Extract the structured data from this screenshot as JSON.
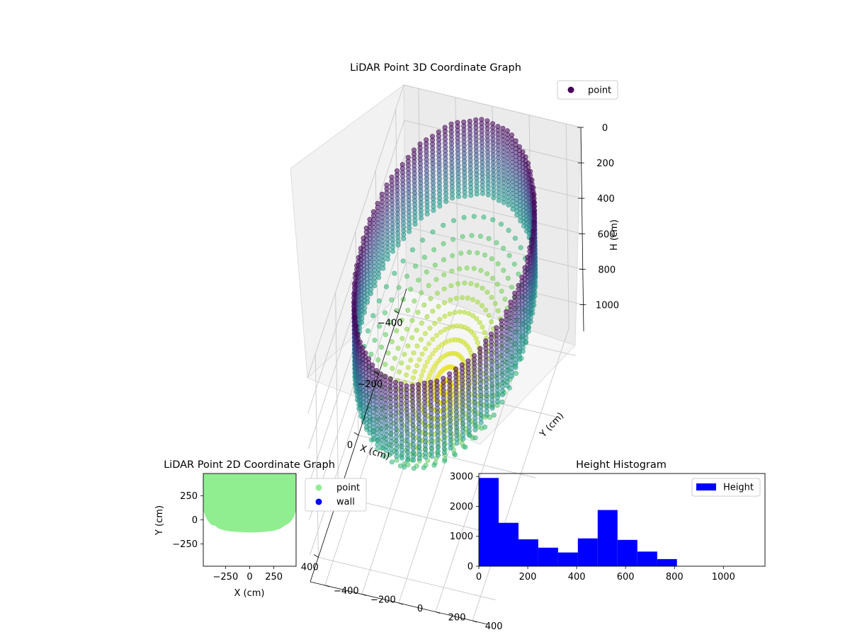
{
  "chart_data": [
    {
      "type": "scatter3d",
      "title": "LiDAR Point 3D Coordinate Graph",
      "xlabel": "X (cm)",
      "ylabel": "Y (cm)",
      "zlabel": "H (cm)",
      "xlim": [
        -480,
        480
      ],
      "ylim": [
        -480,
        480
      ],
      "zlim": [
        0,
        1150
      ],
      "z_inverted": true,
      "x_ticks": [
        -400,
        -200,
        0,
        200,
        400
      ],
      "y_ticks": [
        -400,
        -200,
        0,
        200,
        400
      ],
      "z_ticks": [
        0,
        200,
        400,
        600,
        800,
        1000
      ],
      "legend": {
        "position": "top-right",
        "entries": [
          {
            "label": "point",
            "color": "#440154"
          }
        ]
      },
      "colormap": "viridis",
      "color_by": "height",
      "shape": {
        "ring_radius_cm": 430,
        "wall_top_cm": 0,
        "wall_bottom_cm": 430,
        "floor_depth_cm": 770
      }
    },
    {
      "type": "scatter",
      "title": "LiDAR Point 2D Coordinate Graph",
      "xlabel": "X (cm)",
      "ylabel": "Y (cm)",
      "xlim": [
        -480,
        480
      ],
      "ylim": [
        -480,
        480
      ],
      "x_ticks": [
        -250,
        0,
        250
      ],
      "y_ticks": [
        -250,
        0,
        250
      ],
      "legend": {
        "position": "outside-right",
        "entries": [
          {
            "label": "point",
            "color": "#90ee90"
          },
          {
            "label": "wall",
            "color": "#0000ff"
          }
        ]
      },
      "series": [
        {
          "name": "point",
          "color": "#90ee90",
          "region_x": [
            -480,
            -460,
            -440,
            -400,
            -360,
            -320,
            -260,
            -200,
            -120,
            -40,
            40,
            120,
            200,
            260,
            320,
            360,
            400,
            440,
            460,
            480
          ],
          "region_y_min": [
            100,
            40,
            0,
            -50,
            -60,
            -90,
            -110,
            -120,
            -125,
            -130,
            -130,
            -125,
            -120,
            -110,
            -90,
            -60,
            -40,
            0,
            40,
            100
          ],
          "region_y_max": 480
        }
      ]
    },
    {
      "type": "histogram",
      "title": "Height Histogram",
      "xlabel": "",
      "ylabel": "",
      "xlim": [
        0,
        1170
      ],
      "ylim": [
        0,
        3100
      ],
      "x_ticks": [
        0,
        200,
        400,
        600,
        800,
        1000
      ],
      "y_ticks": [
        0,
        1000,
        2000,
        3000
      ],
      "legend": {
        "position": "top-right",
        "entries": [
          {
            "label": "Height",
            "color": "#0000ff"
          }
        ]
      },
      "bin_edges": [
        0,
        81,
        162,
        243,
        324,
        405,
        486,
        567,
        648,
        729,
        810,
        891,
        972,
        1053,
        1134
      ],
      "counts": [
        2950,
        1450,
        900,
        620,
        460,
        930,
        1880,
        880,
        490,
        240,
        0,
        0,
        0,
        0
      ],
      "color": "#0000ff"
    }
  ]
}
